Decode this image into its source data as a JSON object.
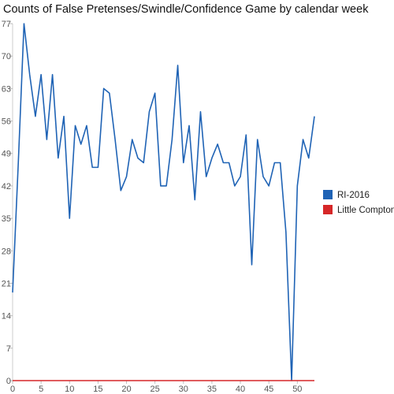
{
  "chart_data": {
    "type": "line",
    "title": "Counts of False Pretenses/Swindle/Confidence Game by calendar week",
    "xlabel": "",
    "ylabel": "",
    "xlim": [
      0,
      53
    ],
    "ylim": [
      0,
      77
    ],
    "x_ticks": [
      0,
      5,
      10,
      15,
      20,
      25,
      30,
      35,
      40,
      45,
      50
    ],
    "y_ticks": [
      0,
      7,
      14,
      21,
      28,
      35,
      42,
      49,
      56,
      63,
      70,
      77
    ],
    "grid": false,
    "legend_position": "right",
    "x": [
      0,
      1,
      2,
      3,
      4,
      5,
      6,
      7,
      8,
      9,
      10,
      11,
      12,
      13,
      14,
      15,
      16,
      17,
      18,
      19,
      20,
      21,
      22,
      23,
      24,
      25,
      26,
      27,
      28,
      29,
      30,
      31,
      32,
      33,
      34,
      35,
      36,
      37,
      38,
      39,
      40,
      41,
      42,
      43,
      44,
      45,
      46,
      47,
      48,
      49,
      50,
      51,
      52,
      53
    ],
    "series": [
      {
        "name": "RI-2016",
        "color": "#1f63b5",
        "values": [
          19,
          47,
          77,
          66,
          57,
          66,
          52,
          66,
          48,
          57,
          35,
          55,
          51,
          55,
          46,
          46,
          63,
          62,
          52,
          41,
          44,
          52,
          48,
          47,
          58,
          62,
          42,
          42,
          52,
          68,
          47,
          55,
          39,
          58,
          44,
          48,
          51,
          47,
          47,
          42,
          44,
          53,
          25,
          52,
          44,
          42,
          47,
          47,
          32,
          0,
          42,
          52,
          48,
          57
        ]
      },
      {
        "name": "Little Compton",
        "color": "#d62728",
        "values": [
          0,
          0,
          0,
          0,
          0,
          0,
          0,
          0,
          0,
          0,
          0,
          0,
          0,
          0,
          0,
          0,
          0,
          0,
          0,
          0,
          0,
          0,
          0,
          0,
          0,
          0,
          0,
          0,
          0,
          0,
          0,
          0,
          0,
          0,
          0,
          0,
          0,
          0,
          0,
          0,
          0,
          0,
          0,
          0,
          0,
          0,
          0,
          0,
          0,
          0,
          0,
          0,
          0,
          0
        ]
      }
    ]
  }
}
